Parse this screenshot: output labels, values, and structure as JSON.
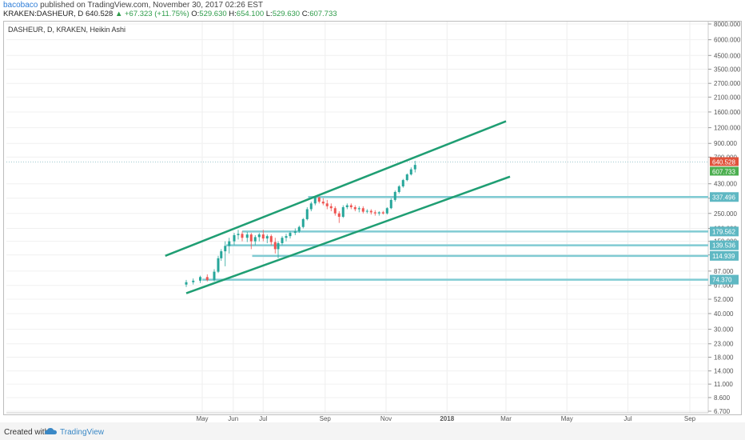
{
  "header": {
    "author": "bacobaco",
    "published_text": "published on TradingView.com, November 30, 2017 02:26 EST",
    "symbol": "KRAKEN:DASHEUR, D",
    "last": "640.528",
    "change": "+67.323 (+11.75%)",
    "o_label": "O:",
    "o": "529.630",
    "h_label": "H:",
    "h": "654.100",
    "l_label": "L:",
    "l": "529.630",
    "c_label": "C:",
    "c": "607.733"
  },
  "chart_data": {
    "type": "candlestick",
    "title": "DASHEUR, D, KRAKEN, Heikin Ashi",
    "y_scale": "log",
    "y_ticks": [
      "8000.000",
      "6000.000",
      "4500.000",
      "3500.000",
      "2700.000",
      "2100.000",
      "1600.000",
      "1200.000",
      "900.000",
      "700.000",
      "430.000",
      "330.000",
      "250.000",
      "190.000",
      "150.000",
      "117.000",
      "87.000",
      "67.000",
      "52.000",
      "40.000",
      "30.000",
      "23.000",
      "18.000",
      "14.000",
      "11.000",
      "8.600",
      "6.700"
    ],
    "y_tick_values": [
      8000,
      6000,
      4500,
      3500,
      2700,
      2100,
      1600,
      1200,
      900,
      700,
      430,
      330,
      250,
      190,
      150,
      117,
      87,
      67,
      52,
      40,
      30,
      23,
      18,
      14,
      11,
      8.6,
      6.7
    ],
    "x_ticks": [
      {
        "label": "May",
        "date": "2017-05-01"
      },
      {
        "label": "Jun",
        "date": "2017-06-01"
      },
      {
        "label": "Jul",
        "date": "2017-07-01"
      },
      {
        "label": "Sep",
        "date": "2017-09-01"
      },
      {
        "label": "Nov",
        "date": "2017-11-01"
      },
      {
        "label": "2018",
        "date": "2018-01-01"
      },
      {
        "label": "Mar",
        "date": "2018-03-01"
      },
      {
        "label": "May",
        "date": "2018-05-01"
      },
      {
        "label": "Jul",
        "date": "2018-07-01"
      },
      {
        "label": "Sep",
        "date": "2018-09-01"
      }
    ],
    "price_label": "640.528",
    "close_label": "607.733",
    "support_levels": [
      {
        "label": "337.496",
        "value": 337.496,
        "start": "2017-08-15"
      },
      {
        "label": "179.562",
        "value": 179.562,
        "start": "2017-06-10"
      },
      {
        "label": "139.536",
        "value": 139.536,
        "start": "2017-05-25"
      },
      {
        "label": "114.939",
        "value": 114.939,
        "start": "2017-06-20"
      },
      {
        "label": "74.370",
        "value": 74.37,
        "start": "2017-05-01"
      }
    ],
    "channel_upper": [
      {
        "date": "2017-03-25",
        "value": 115
      },
      {
        "date": "2018-03-01",
        "value": 1350
      }
    ],
    "channel_lower": [
      {
        "date": "2017-04-15",
        "value": 58
      },
      {
        "date": "2018-03-05",
        "value": 490
      }
    ],
    "ohlc": [
      [
        "2017-04-15",
        68,
        74,
        65,
        71
      ],
      [
        "2017-04-22",
        71,
        76,
        68,
        73
      ],
      [
        "2017-04-29",
        73,
        80,
        70,
        78
      ],
      [
        "2017-05-06",
        78,
        82,
        72,
        74
      ],
      [
        "2017-05-13",
        74,
        90,
        72,
        86
      ],
      [
        "2017-05-17",
        86,
        115,
        84,
        110
      ],
      [
        "2017-05-20",
        110,
        130,
        105,
        125
      ],
      [
        "2017-05-24",
        125,
        150,
        95,
        138
      ],
      [
        "2017-05-28",
        138,
        160,
        120,
        150
      ],
      [
        "2017-06-02",
        150,
        175,
        140,
        168
      ],
      [
        "2017-06-06",
        168,
        185,
        155,
        172
      ],
      [
        "2017-06-10",
        172,
        180,
        150,
        160
      ],
      [
        "2017-06-15",
        160,
        178,
        148,
        170
      ],
      [
        "2017-06-19",
        170,
        175,
        130,
        150
      ],
      [
        "2017-06-23",
        150,
        168,
        140,
        162
      ],
      [
        "2017-06-27",
        162,
        175,
        150,
        170
      ],
      [
        "2017-07-01",
        170,
        185,
        150,
        158
      ],
      [
        "2017-07-05",
        158,
        170,
        145,
        165
      ],
      [
        "2017-07-09",
        165,
        170,
        140,
        148
      ],
      [
        "2017-07-13",
        148,
        160,
        120,
        130
      ],
      [
        "2017-07-16",
        130,
        150,
        110,
        145
      ],
      [
        "2017-07-20",
        145,
        165,
        140,
        160
      ],
      [
        "2017-07-24",
        160,
        172,
        150,
        165
      ],
      [
        "2017-07-28",
        165,
        180,
        158,
        175
      ],
      [
        "2017-08-02",
        175,
        190,
        168,
        180
      ],
      [
        "2017-08-06",
        180,
        200,
        175,
        195
      ],
      [
        "2017-08-10",
        195,
        230,
        190,
        225
      ],
      [
        "2017-08-14",
        225,
        280,
        220,
        270
      ],
      [
        "2017-08-18",
        270,
        310,
        260,
        300
      ],
      [
        "2017-08-22",
        300,
        345,
        290,
        335
      ],
      [
        "2017-08-26",
        335,
        340,
        300,
        310
      ],
      [
        "2017-08-30",
        310,
        330,
        290,
        300
      ],
      [
        "2017-09-03",
        300,
        320,
        270,
        285
      ],
      [
        "2017-09-07",
        285,
        300,
        260,
        275
      ],
      [
        "2017-09-11",
        275,
        285,
        240,
        250
      ],
      [
        "2017-09-15",
        250,
        260,
        210,
        235
      ],
      [
        "2017-09-19",
        235,
        290,
        230,
        280
      ],
      [
        "2017-09-23",
        280,
        300,
        270,
        290
      ],
      [
        "2017-09-27",
        290,
        300,
        270,
        280
      ],
      [
        "2017-10-01",
        280,
        290,
        260,
        270
      ],
      [
        "2017-10-05",
        270,
        285,
        255,
        275
      ],
      [
        "2017-10-09",
        275,
        285,
        250,
        258
      ],
      [
        "2017-10-13",
        258,
        270,
        250,
        262
      ],
      [
        "2017-10-17",
        262,
        270,
        245,
        255
      ],
      [
        "2017-10-21",
        255,
        265,
        240,
        250
      ],
      [
        "2017-10-25",
        250,
        260,
        240,
        255
      ],
      [
        "2017-10-29",
        255,
        262,
        245,
        250
      ],
      [
        "2017-11-02",
        250,
        280,
        245,
        275
      ],
      [
        "2017-11-06",
        275,
        330,
        270,
        320
      ],
      [
        "2017-11-10",
        320,
        380,
        310,
        370
      ],
      [
        "2017-11-14",
        370,
        420,
        360,
        410
      ],
      [
        "2017-11-18",
        410,
        470,
        400,
        460
      ],
      [
        "2017-11-22",
        460,
        520,
        450,
        510
      ],
      [
        "2017-11-26",
        510,
        580,
        500,
        560
      ],
      [
        "2017-11-30",
        560,
        654,
        529,
        607
      ]
    ]
  },
  "footer": {
    "created_with": "Created with",
    "brand": "TradingView"
  },
  "colors": {
    "up": "#26a69a",
    "down": "#ef5350",
    "channel": "#1f9e73",
    "support": "#80cbd3",
    "label_red": "#e0533c",
    "label_green": "#4caf50"
  }
}
